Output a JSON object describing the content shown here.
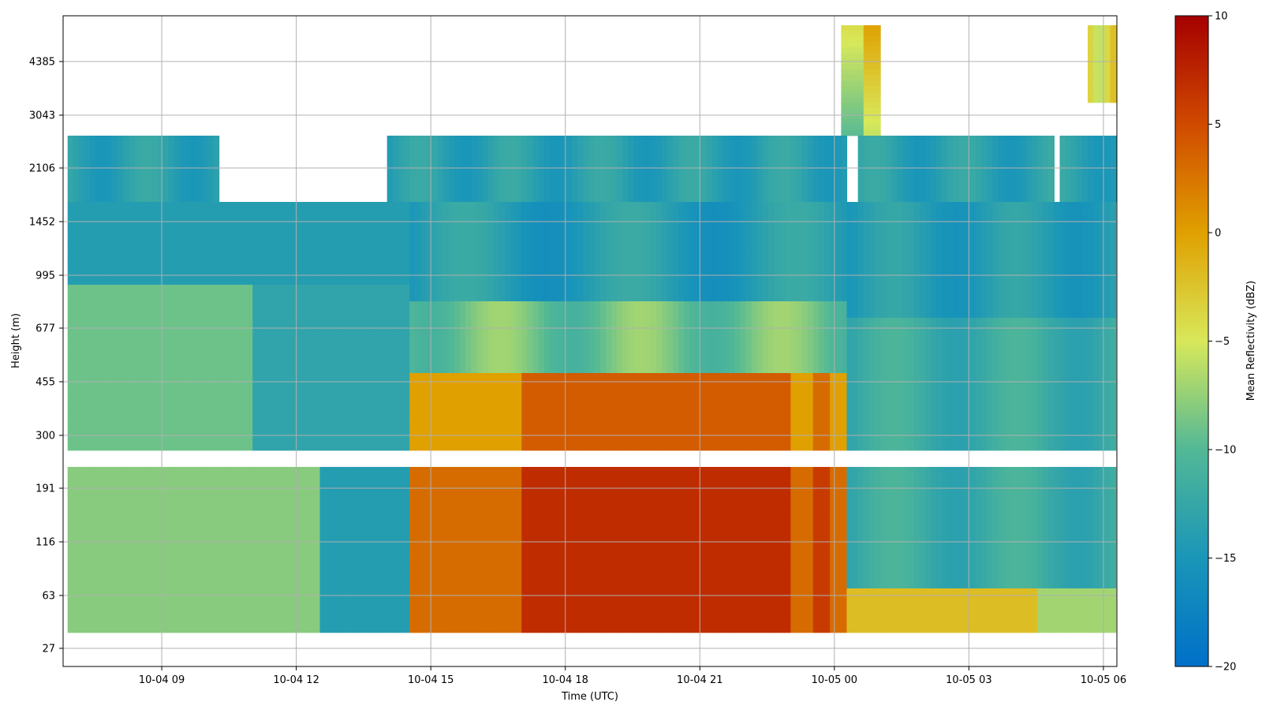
{
  "chart_data": {
    "type": "heatmap",
    "title": "",
    "xlabel": "Time (UTC)",
    "ylabel": "Height (m)",
    "colorbar_label": "Mean Reflectivity (dBZ)",
    "colormap": "jet_r-like (blue → green → yellow → orange → dark red)",
    "color_range": [
      -20,
      10
    ],
    "colorbar_ticks": [
      "10",
      "5",
      "0",
      "−5",
      "−10",
      "−15",
      "−20"
    ],
    "x_ticks": [
      "10-04 09",
      "10-04 12",
      "10-04 15",
      "10-04 18",
      "10-04 21",
      "10-05 00",
      "10-05 03",
      "10-05 06"
    ],
    "x_range_hours_from_10_04_00": [
      6.8,
      30.3
    ],
    "y_scale": "log",
    "y_ticks": [
      "27",
      "63",
      "116",
      "191",
      "300",
      "455",
      "677",
      "995",
      "1452",
      "2106",
      "3043",
      "4385"
    ],
    "y_range_m": [
      27,
      5600
    ],
    "grid": true,
    "colorbar_position": "right",
    "data_description_regions": [
      {
        "time": "10-04 07 to 10-04 14",
        "height_m": "300–2200",
        "dBZ": -14
      },
      {
        "time": "10-04 07 to 10-04 14",
        "height_m": "40–300",
        "dBZ": -8
      },
      {
        "time": "10-04 16 to 10-05 00",
        "height_m": "40–500",
        "dBZ": 5
      },
      {
        "time": "10-04 19",
        "height_m": "63–191",
        "dBZ": 8
      },
      {
        "time": "10-05 00 to 10-05 06",
        "height_m": "40–1800",
        "dBZ": -13
      },
      {
        "time": "10-05 00 to 10-05 01",
        "height_m": "3800–5500",
        "dBZ": -3
      },
      {
        "time": "10-05 05 to 10-05 06",
        "height_m": "3800–5500",
        "dBZ": -4
      }
    ]
  }
}
